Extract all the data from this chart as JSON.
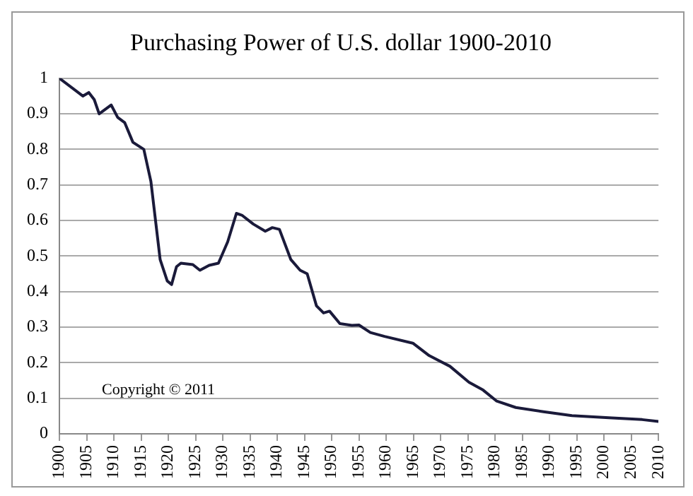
{
  "chart_data": {
    "type": "line",
    "title": "Purchasing Power of U.S. dollar 1900-2010",
    "x": [
      1900,
      1904.3,
      1905.4,
      1906.4,
      1907.3,
      1909.5,
      1910.7,
      1912,
      1913.5,
      1915.5,
      1916.8,
      1918.5,
      1919.8,
      1920.6,
      1921.5,
      1922.3,
      1924.5,
      1925.8,
      1927.5,
      1929.2,
      1930.9,
      1932.5,
      1933.5,
      1935.6,
      1937.8,
      1939.1,
      1940.4,
      1942.5,
      1944.2,
      1945.5,
      1947.2,
      1948.5,
      1949.6,
      1951.5,
      1953.7,
      1955,
      1957.1,
      1959.7,
      1964.9,
      1967.9,
      1971.7,
      1975.2,
      1977.8,
      1980.3,
      1983.8,
      1988.9,
      1994.1,
      2000.9,
      2007,
      2010
    ],
    "series": [
      {
        "color": "#1a1a3a",
        "values": [
          1.0,
          0.95,
          0.96,
          0.94,
          0.9,
          0.925,
          0.89,
          0.875,
          0.82,
          0.8,
          0.71,
          0.49,
          0.43,
          0.42,
          0.47,
          0.48,
          0.476,
          0.46,
          0.474,
          0.48,
          0.54,
          0.62,
          0.615,
          0.59,
          0.57,
          0.58,
          0.575,
          0.49,
          0.46,
          0.45,
          0.36,
          0.34,
          0.345,
          0.31,
          0.305,
          0.306,
          0.285,
          0.274,
          0.255,
          0.22,
          0.19,
          0.145,
          0.123,
          0.092,
          0.074,
          0.062,
          0.051,
          0.045,
          0.04,
          0.035
        ]
      }
    ],
    "xlim": [
      1900,
      2010
    ],
    "xticks": [
      1900,
      1905,
      1910,
      1915,
      1920,
      1925,
      1930,
      1935,
      1940,
      1945,
      1950,
      1955,
      1960,
      1965,
      1970,
      1975,
      1980,
      1985,
      1990,
      1995,
      2000,
      2005,
      2010
    ],
    "ylim": [
      0,
      1
    ],
    "yticks": [
      0,
      0.1,
      0.2,
      0.3,
      0.4,
      0.5,
      0.6,
      0.7,
      0.8,
      0.9,
      1
    ],
    "grid": "y",
    "marker": "none",
    "line_style": "solid",
    "legend": false,
    "annotations": [
      "Copyright © 2011"
    ]
  }
}
